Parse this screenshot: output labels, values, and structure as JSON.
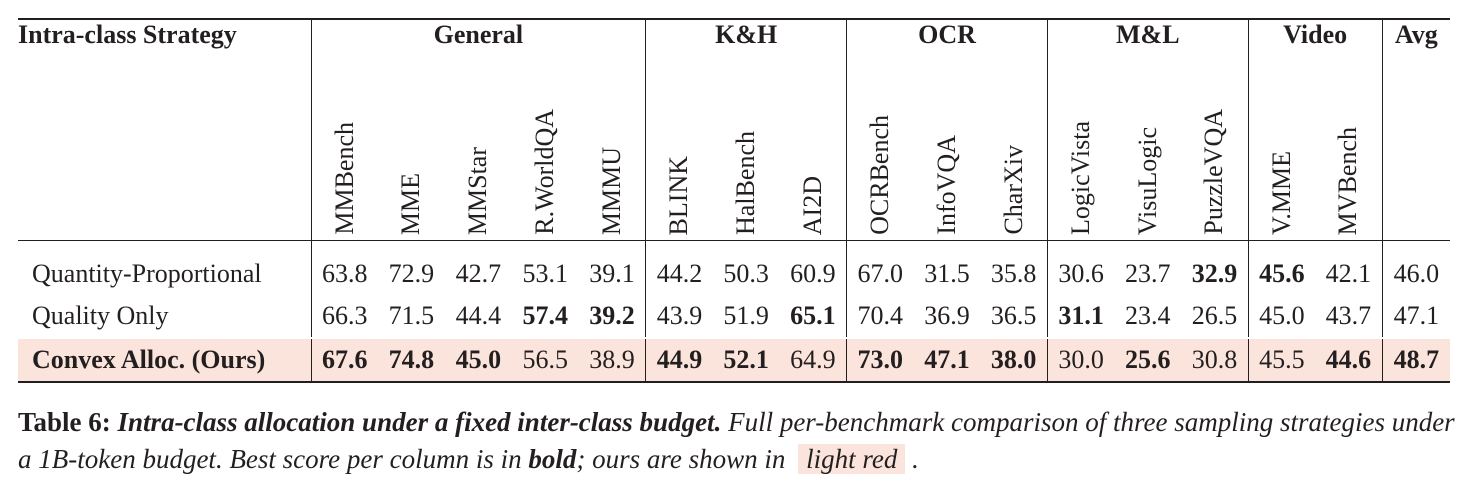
{
  "table": {
    "strategy_header": "Intra-class Strategy",
    "avg_header": "Avg",
    "groups": [
      {
        "name": "General",
        "benchmarks": [
          "MMBench",
          "MME",
          "MMStar",
          "R.WorldQA",
          "MMMU"
        ]
      },
      {
        "name": "K&H",
        "benchmarks": [
          "BLINK",
          "HalBench",
          "AI2D"
        ]
      },
      {
        "name": "OCR",
        "benchmarks": [
          "OCRBench",
          "InfoVQA",
          "CharXiv"
        ]
      },
      {
        "name": "M&L",
        "benchmarks": [
          "LogicVista",
          "VisuLogic",
          "PuzzleVQA"
        ]
      },
      {
        "name": "Video",
        "benchmarks": [
          "V.MME",
          "MVBench"
        ]
      }
    ],
    "rows": [
      {
        "name": "Quantity-Proportional",
        "values": [
          "63.8",
          "72.9",
          "42.7",
          "53.1",
          "39.1",
          "44.2",
          "50.3",
          "60.9",
          "67.0",
          "31.5",
          "35.8",
          "30.6",
          "23.7",
          "32.9",
          "45.6",
          "42.1"
        ],
        "avg": "46.0",
        "bold": [
          false,
          false,
          false,
          false,
          false,
          false,
          false,
          false,
          false,
          false,
          false,
          false,
          false,
          true,
          true,
          false
        ],
        "avg_bold": false,
        "highlight": false,
        "name_bold": false
      },
      {
        "name": "Quality Only",
        "values": [
          "66.3",
          "71.5",
          "44.4",
          "57.4",
          "39.2",
          "43.9",
          "51.9",
          "65.1",
          "70.4",
          "36.9",
          "36.5",
          "31.1",
          "23.4",
          "26.5",
          "45.0",
          "43.7"
        ],
        "avg": "47.1",
        "bold": [
          false,
          false,
          false,
          true,
          true,
          false,
          false,
          true,
          false,
          false,
          false,
          true,
          false,
          false,
          false,
          false
        ],
        "avg_bold": false,
        "highlight": false,
        "name_bold": false
      },
      {
        "name": "Convex Alloc. (Ours)",
        "values": [
          "67.6",
          "74.8",
          "45.0",
          "56.5",
          "38.9",
          "44.9",
          "52.1",
          "64.9",
          "73.0",
          "47.1",
          "38.0",
          "30.0",
          "25.6",
          "30.8",
          "45.5",
          "44.6"
        ],
        "avg": "48.7",
        "bold": [
          true,
          true,
          true,
          false,
          false,
          true,
          true,
          false,
          true,
          true,
          true,
          false,
          true,
          false,
          false,
          true
        ],
        "avg_bold": true,
        "highlight": true,
        "name_bold": true
      }
    ]
  },
  "caption": {
    "label": "Table 6:",
    "title": "Intra-class allocation under a fixed inter-class budget.",
    "text1": "Full per-benchmark comparison of three sampling strategies under a 1B-token budget. Best score per column is in",
    "bold_word": "bold",
    "text2": "; ours are shown in",
    "swatch_text": "light red",
    "end": "."
  },
  "colors": {
    "highlight": "#fbe4dc",
    "text": "#231f20"
  }
}
